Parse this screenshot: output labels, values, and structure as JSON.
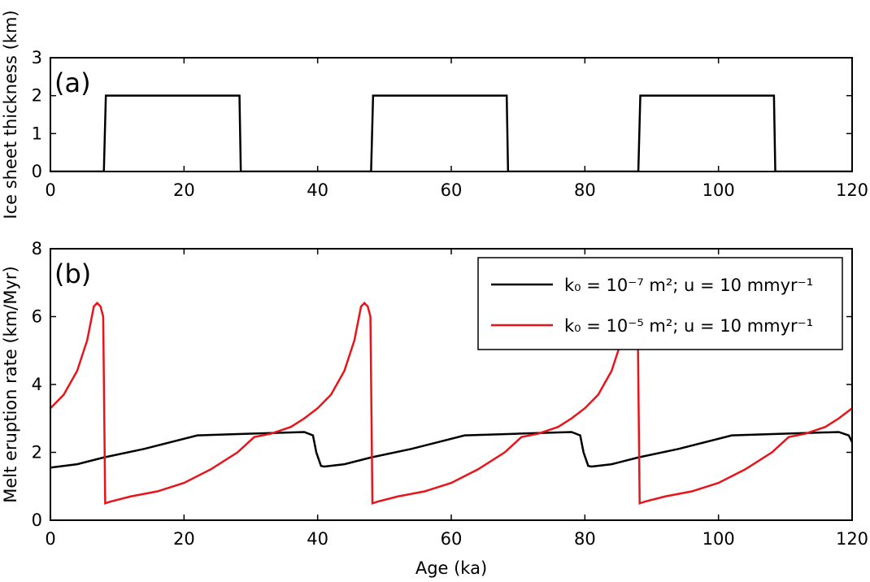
{
  "chart_data": [
    {
      "type": "line",
      "annotation": "(a)",
      "ylabel": "Ice sheet thickness (km)",
      "xlim": [
        0,
        120
      ],
      "ylim": [
        0,
        3
      ],
      "xticks": [
        0,
        20,
        40,
        60,
        80,
        100,
        120
      ],
      "yticks": [
        0,
        1,
        2,
        3
      ],
      "series": [
        {
          "color": "#000000",
          "x": [
            0,
            8,
            8.3,
            28.3,
            28.5,
            48,
            48.3,
            68.3,
            68.5,
            88,
            88.3,
            108.3,
            108.5,
            120
          ],
          "values": [
            0,
            0,
            2,
            2,
            0,
            0,
            2,
            2,
            0,
            0,
            2,
            2,
            0,
            0
          ]
        }
      ]
    },
    {
      "type": "line",
      "annotation": "(b)",
      "ylabel": "Melt eruption rate (km/Myr)",
      "xlabel": "Age (ka)",
      "xlim": [
        0,
        120
      ],
      "ylim": [
        0,
        8
      ],
      "xticks": [
        0,
        20,
        40,
        60,
        80,
        100,
        120
      ],
      "yticks": [
        0,
        2,
        4,
        6,
        8
      ],
      "legend": "upper right",
      "series": [
        {
          "name": "k₀ = 10⁻⁷ m²; u = 10 mmyr⁻¹",
          "color": "#000000",
          "x": [
            0,
            4,
            8,
            14,
            22,
            30,
            38,
            39.3,
            39.8,
            40.5,
            41,
            44,
            48,
            54,
            62,
            70,
            78,
            79.3,
            79.8,
            80.5,
            81,
            84,
            88,
            94,
            102,
            110,
            118,
            119.5,
            120
          ],
          "values": [
            1.55,
            1.65,
            1.85,
            2.1,
            2.5,
            2.55,
            2.6,
            2.5,
            2.0,
            1.6,
            1.58,
            1.65,
            1.85,
            2.1,
            2.5,
            2.55,
            2.6,
            2.5,
            2.0,
            1.6,
            1.58,
            1.65,
            1.85,
            2.1,
            2.5,
            2.55,
            2.6,
            2.5,
            2.3
          ]
        },
        {
          "name": "k₀ = 10⁻⁵ m²; u = 10 mmyr⁻¹",
          "color": "#e8141a",
          "x": [
            0,
            2,
            4,
            5.5,
            6.5,
            7,
            7.5,
            7.9,
            8.2,
            9,
            12,
            16,
            20,
            24,
            28,
            30.5,
            33,
            36,
            38,
            40,
            42,
            44,
            45.5,
            46.5,
            47,
            47.5,
            47.9,
            48.2,
            49,
            52,
            56,
            60,
            64,
            68,
            70.5,
            73,
            76,
            78,
            80,
            82,
            84,
            85.5,
            86.5,
            87,
            87.5,
            87.9,
            88.2,
            89,
            92,
            96,
            100,
            104,
            108,
            110.5,
            113,
            116,
            118,
            120
          ],
          "values": [
            3.3,
            3.7,
            4.4,
            5.3,
            6.3,
            6.4,
            6.3,
            6.0,
            0.5,
            0.55,
            0.7,
            0.85,
            1.1,
            1.5,
            2.0,
            2.45,
            2.55,
            2.75,
            3.0,
            3.3,
            3.7,
            4.4,
            5.3,
            6.3,
            6.4,
            6.3,
            6.0,
            0.5,
            0.55,
            0.7,
            0.85,
            1.1,
            1.5,
            2.0,
            2.45,
            2.55,
            2.75,
            3.0,
            3.3,
            3.7,
            4.4,
            5.3,
            6.3,
            6.4,
            6.3,
            6.0,
            0.5,
            0.55,
            0.7,
            0.85,
            1.1,
            1.5,
            2.0,
            2.45,
            2.55,
            2.75,
            3.0,
            3.3
          ]
        }
      ]
    }
  ]
}
